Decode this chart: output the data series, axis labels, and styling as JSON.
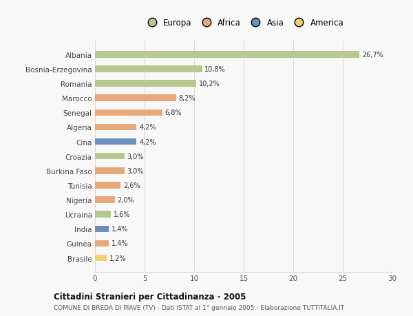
{
  "categories": [
    "Albania",
    "Bosnia-Erzegovina",
    "Romania",
    "Marocco",
    "Senegal",
    "Algeria",
    "Cina",
    "Croazia",
    "Burkina Faso",
    "Tunisia",
    "Nigeria",
    "Ucraina",
    "India",
    "Guinea",
    "Brasile"
  ],
  "values": [
    26.7,
    10.8,
    10.2,
    8.2,
    6.8,
    4.2,
    4.2,
    3.0,
    3.0,
    2.6,
    2.0,
    1.6,
    1.4,
    1.4,
    1.2
  ],
  "labels": [
    "26,7%",
    "10,8%",
    "10,2%",
    "8,2%",
    "6,8%",
    "4,2%",
    "4,2%",
    "3,0%",
    "3,0%",
    "2,6%",
    "2,0%",
    "1,6%",
    "1,4%",
    "1,4%",
    "1,2%"
  ],
  "colors": [
    "#b5c98e",
    "#b5c98e",
    "#b5c98e",
    "#e8a87c",
    "#e8a87c",
    "#e8a87c",
    "#6b8eba",
    "#b5c98e",
    "#e8a87c",
    "#e8a87c",
    "#e8a87c",
    "#b5c98e",
    "#6b8eba",
    "#e8a87c",
    "#f0d070"
  ],
  "legend_labels": [
    "Europa",
    "Africa",
    "Asia",
    "America"
  ],
  "legend_colors": [
    "#b5c98e",
    "#e8a87c",
    "#6b8eba",
    "#f0d070"
  ],
  "title_bold": "Cittadini Stranieri per Cittadinanza - 2005",
  "subtitle": "COMUNE DI BREDA DI PIAVE (TV) - Dati ISTAT al 1° gennaio 2005 - Elaborazione TUTTITALIA.IT",
  "xlim": [
    0,
    30
  ],
  "xticks": [
    0,
    5,
    10,
    15,
    20,
    25,
    30
  ],
  "background_color": "#f8f8f8",
  "grid_color": "#d8d8d8"
}
